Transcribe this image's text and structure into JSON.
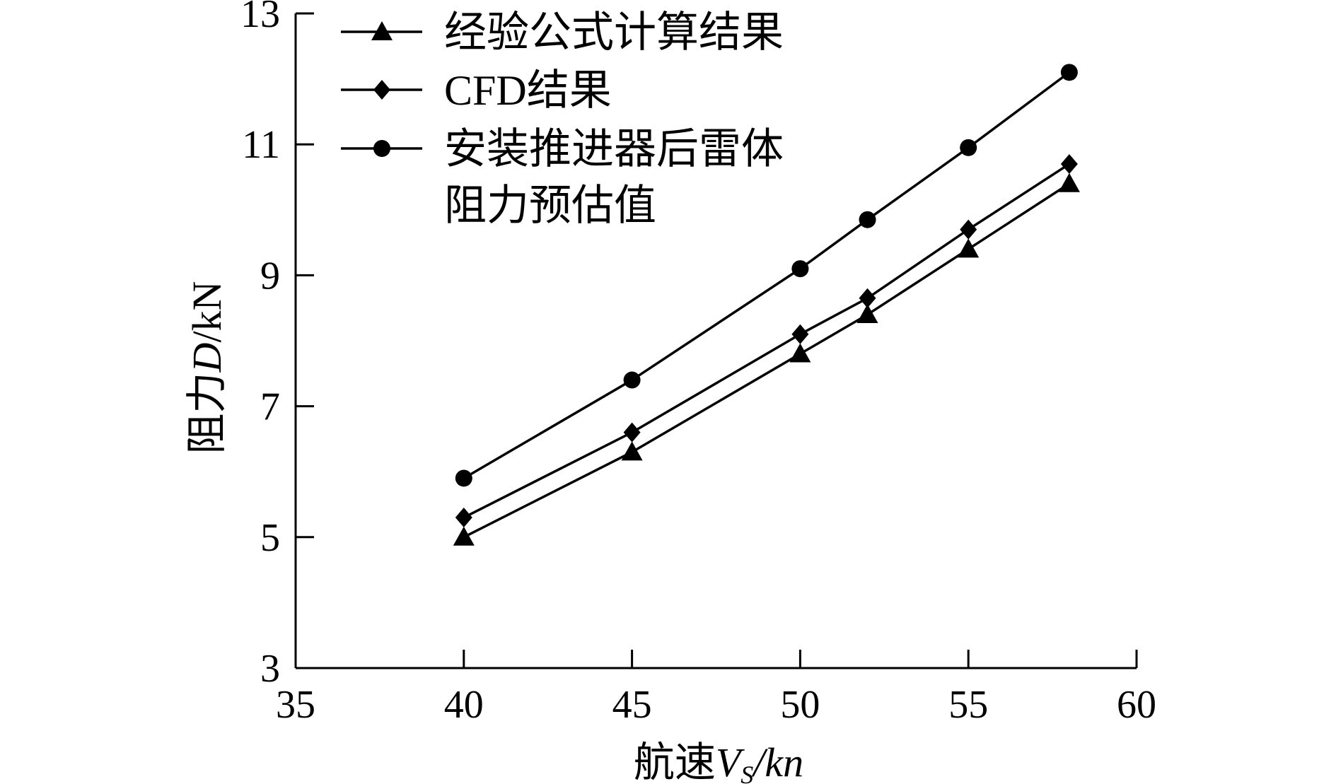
{
  "chart_data": {
    "type": "line",
    "xlabel": {
      "prefix": "航速",
      "var": "V",
      "sub": "S",
      "suffix": "/kn"
    },
    "ylabel": {
      "prefix": "阻力",
      "var": "D",
      "suffix": "/kN"
    },
    "xlim": [
      35,
      60
    ],
    "ylim": [
      3,
      13
    ],
    "xticks": [
      "35",
      "40",
      "45",
      "50",
      "55",
      "60"
    ],
    "yticks": [
      "3",
      "5",
      "7",
      "9",
      "11",
      "13"
    ],
    "x": [
      40,
      45,
      50,
      52,
      55,
      58
    ],
    "series": [
      {
        "name": "经验公式计算结果",
        "marker": "triangle",
        "values": [
          5.0,
          6.3,
          7.8,
          8.4,
          9.4,
          10.4
        ]
      },
      {
        "name": "CFD结果",
        "marker": "diamond",
        "values": [
          5.3,
          6.6,
          8.1,
          8.65,
          9.7,
          10.7
        ]
      },
      {
        "name": "安装推进器后雷体阻力预估值",
        "name_lines": [
          "安装推进器后雷体",
          "阻力预估值"
        ],
        "marker": "circle",
        "values": [
          5.9,
          7.4,
          9.1,
          9.85,
          10.95,
          12.1
        ]
      }
    ],
    "legend_position": "top-left"
  }
}
